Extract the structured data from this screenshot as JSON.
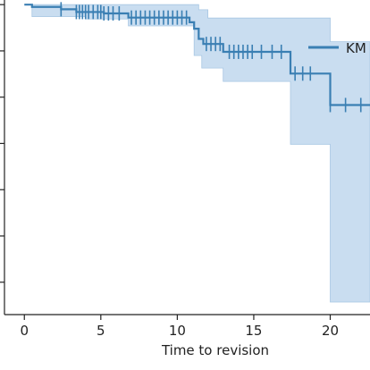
{
  "chart_data": {
    "type": "line",
    "title": "",
    "xlabel": "Time to revision",
    "ylabel": "",
    "xlim": [
      -1.3,
      22.6
    ],
    "ylim": [
      0.33,
      1.01
    ],
    "x_ticks": [
      0,
      5,
      10,
      15,
      20
    ],
    "y_tick_values": [
      0.4,
      0.5,
      0.6,
      0.7,
      0.8,
      0.9,
      1.0
    ],
    "y_tick_labels_visible": false,
    "grid": false,
    "legend": {
      "position": "top-right",
      "entries": [
        "KM"
      ]
    },
    "colors": {
      "line": "#3a7fb3",
      "band": "#c6dbef",
      "band_edge": "#a8c7e3",
      "axis": "#222222"
    },
    "series": [
      {
        "name": "KM",
        "survival_steps": [
          [
            0,
            1.0
          ],
          [
            0.5,
            0.995
          ],
          [
            2.4,
            0.99
          ],
          [
            3.4,
            0.984
          ],
          [
            5.2,
            0.981
          ],
          [
            6.8,
            0.972
          ],
          [
            10.8,
            0.962
          ],
          [
            11.1,
            0.948
          ],
          [
            11.4,
            0.926
          ],
          [
            11.7,
            0.915
          ],
          [
            13.0,
            0.898
          ],
          [
            17.4,
            0.851
          ],
          [
            20.0,
            0.783
          ],
          [
            22.6,
            0.783
          ]
        ],
        "ci_upper_steps": [
          [
            0.5,
            1.0
          ],
          [
            11.4,
            0.989
          ],
          [
            12.0,
            0.971
          ],
          [
            20.0,
            0.92
          ],
          [
            22.6,
            0.92
          ]
        ],
        "ci_lower_steps": [
          [
            0.5,
            0.974
          ],
          [
            4.0,
            0.969
          ],
          [
            6.8,
            0.954
          ],
          [
            11.1,
            0.89
          ],
          [
            11.6,
            0.863
          ],
          [
            13.0,
            0.834
          ],
          [
            17.4,
            0.698
          ],
          [
            20.0,
            0.357
          ],
          [
            22.6,
            0.357
          ]
        ],
        "censored_times": [
          2.4,
          3.4,
          3.6,
          3.8,
          4.0,
          4.2,
          4.5,
          4.8,
          5.0,
          5.2,
          5.5,
          5.8,
          6.2,
          7.0,
          7.3,
          7.6,
          7.9,
          8.2,
          8.5,
          8.8,
          9.1,
          9.4,
          9.7,
          10.0,
          10.3,
          10.6,
          11.9,
          12.2,
          12.5,
          12.8,
          13.4,
          13.7,
          14.0,
          14.3,
          14.6,
          14.9,
          15.5,
          16.2,
          16.8,
          17.7,
          18.2,
          18.7,
          20.0,
          21.0,
          22.0
        ]
      }
    ]
  }
}
